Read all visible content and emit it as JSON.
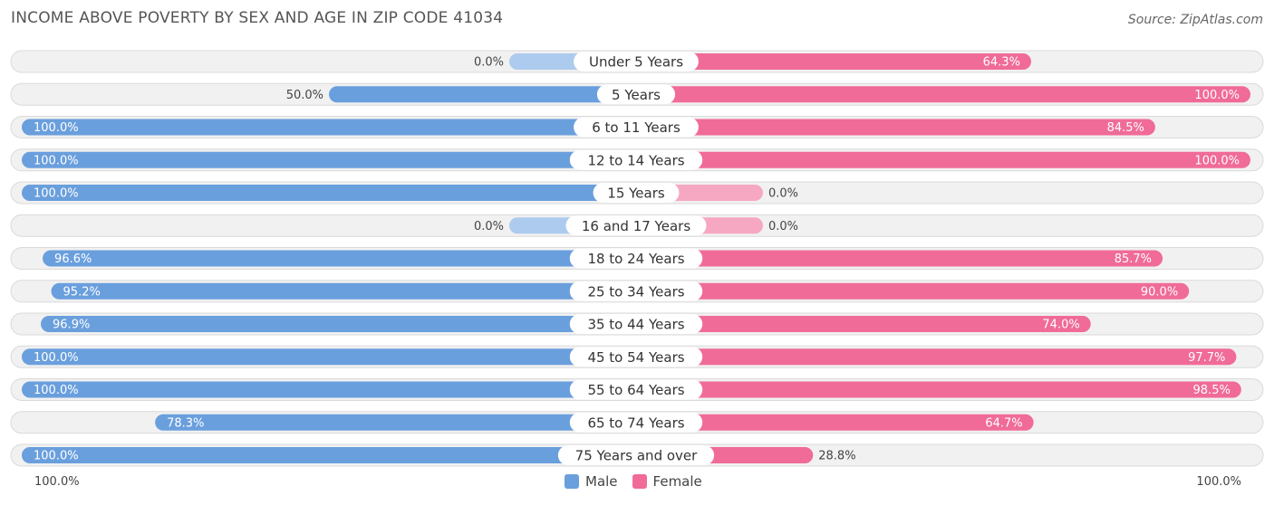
{
  "header": {
    "title": "INCOME ABOVE POVERTY BY SEX AND AGE IN ZIP CODE 41034",
    "source": "Source: ZipAtlas.com"
  },
  "colors": {
    "male": "#6a9fdd",
    "male_light": "#adcbee",
    "female": "#f06b98",
    "female_light": "#f6a8c3"
  },
  "chart_data": {
    "type": "bar",
    "orientation": "horizontal-diverging",
    "title": "INCOME ABOVE POVERTY BY SEX AND AGE IN ZIP CODE 41034",
    "categories": [
      "Under 5 Years",
      "5 Years",
      "6 to 11 Years",
      "12 to 14 Years",
      "15 Years",
      "16 and 17 Years",
      "18 to 24 Years",
      "25 to 34 Years",
      "35 to 44 Years",
      "45 to 54 Years",
      "55 to 64 Years",
      "65 to 74 Years",
      "75 Years and over"
    ],
    "series": [
      {
        "name": "Male",
        "values": [
          0.0,
          50.0,
          100.0,
          100.0,
          100.0,
          0.0,
          96.6,
          95.2,
          96.9,
          100.0,
          100.0,
          78.3,
          100.0
        ]
      },
      {
        "name": "Female",
        "values": [
          64.3,
          100.0,
          84.5,
          100.0,
          0.0,
          0.0,
          85.7,
          90.0,
          74.0,
          97.7,
          98.5,
          64.7,
          28.8
        ]
      }
    ],
    "value_labels": {
      "male": [
        "0.0%",
        "50.0%",
        "100.0%",
        "100.0%",
        "100.0%",
        "0.0%",
        "96.6%",
        "95.2%",
        "96.9%",
        "100.0%",
        "100.0%",
        "78.3%",
        "100.0%"
      ],
      "female": [
        "64.3%",
        "100.0%",
        "84.5%",
        "100.0%",
        "0.0%",
        "0.0%",
        "85.7%",
        "90.0%",
        "74.0%",
        "97.7%",
        "98.5%",
        "64.7%",
        "28.8%"
      ]
    },
    "xlim": [
      0,
      100
    ],
    "axis_left_label": "100.0%",
    "axis_right_label": "100.0%",
    "legend": {
      "position": "bottom-center",
      "entries": [
        "Male",
        "Female"
      ]
    }
  }
}
